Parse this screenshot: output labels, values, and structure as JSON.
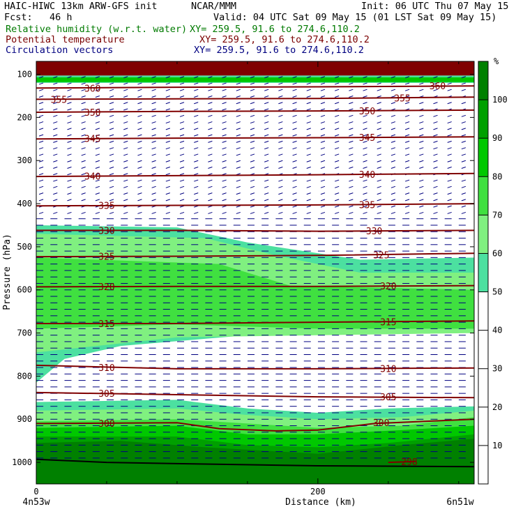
{
  "header": {
    "left_line1": "HAIC-HIWC 13km ARW-GFS init",
    "left_line1b": "NCAR/MMM",
    "left_line2": "Fcst:   46 h",
    "init": "Init: 06 UTC Thu 07 May 15",
    "valid": "Valid: 04 UTC Sat 09 May 15 (01 LST Sat 09 May 15)",
    "fields": [
      {
        "name": "Relative humidity (w.r.t. water)",
        "xy": "XY= 259.5, 91.6 to 274.6,110.2",
        "color": "#007a00"
      },
      {
        "name": "Potential temperature",
        "xy": "XY= 259.5, 91.6 to 274.6,110.2",
        "color": "#7a0000"
      },
      {
        "name": "Circulation vectors",
        "xy": "XY= 259.5, 91.6 to 274.6,110.2",
        "color": "#000080"
      }
    ]
  },
  "chart_data": {
    "type": "heatmap",
    "xlabel": "Distance (km)",
    "ylabel": "Pressure (hPa)",
    "xlim": [
      0,
      311
    ],
    "ylim": [
      1050,
      70
    ],
    "x_ticks": [
      0,
      200
    ],
    "x_minor_ticks": [
      50,
      100,
      150,
      250,
      300
    ],
    "y_ticks": [
      100,
      200,
      300,
      400,
      500,
      600,
      700,
      800,
      900,
      1000
    ],
    "x_endpoints": {
      "left": "4n53w",
      "right": "6n51w"
    },
    "colorbar": {
      "unit": "%",
      "levels": [
        0,
        10,
        20,
        30,
        40,
        50,
        60,
        70,
        80,
        90,
        100,
        110
      ],
      "tick_labels": [
        "10",
        "20",
        "30",
        "40",
        "50",
        "60",
        "70",
        "80",
        "90",
        "100"
      ],
      "colors": [
        "#ffffff",
        "#ffffff",
        "#ffffff",
        "#ffffff",
        "#ffffff",
        "#4ce0a0",
        "#80f080",
        "#40e040",
        "#00c800",
        "#00a000",
        "#008000",
        "#ff8080"
      ]
    },
    "rh_regions": [
      {
        "level": 100,
        "color": "#800000",
        "top": [
          {
            "x": 0,
            "p": 70
          },
          {
            "x": 311,
            "p": 70
          }
        ],
        "bottom": [
          {
            "x": 0,
            "p": 103
          },
          {
            "x": 311,
            "p": 103
          }
        ]
      },
      {
        "level": 50,
        "color": "#4ce0a0",
        "top": [
          {
            "x": 0,
            "p": 103
          },
          {
            "x": 311,
            "p": 103
          }
        ],
        "bottom": [
          {
            "x": 0,
            "p": 120
          },
          {
            "x": 311,
            "p": 120
          }
        ]
      },
      {
        "level": 80,
        "color": "#00c800",
        "top": [
          {
            "x": 0,
            "p": 107
          },
          {
            "x": 311,
            "p": 107
          }
        ],
        "bottom": [
          {
            "x": 0,
            "p": 118
          },
          {
            "x": 311,
            "p": 118
          }
        ]
      },
      {
        "level": 50,
        "color": "#4ce0a0",
        "top": [
          {
            "x": 0,
            "p": 450
          },
          {
            "x": 100,
            "p": 455
          },
          {
            "x": 150,
            "p": 490
          },
          {
            "x": 230,
            "p": 530
          },
          {
            "x": 311,
            "p": 525
          }
        ],
        "bottom": [
          {
            "x": 0,
            "p": 815
          },
          {
            "x": 20,
            "p": 760
          },
          {
            "x": 60,
            "p": 730
          },
          {
            "x": 150,
            "p": 705
          },
          {
            "x": 250,
            "p": 690
          },
          {
            "x": 311,
            "p": 650
          }
        ]
      },
      {
        "level": 60,
        "color": "#80f080",
        "top": [
          {
            "x": 0,
            "p": 470
          },
          {
            "x": 120,
            "p": 480
          },
          {
            "x": 170,
            "p": 520
          },
          {
            "x": 230,
            "p": 560
          },
          {
            "x": 311,
            "p": 560
          }
        ],
        "bottom": [
          {
            "x": 0,
            "p": 745
          },
          {
            "x": 100,
            "p": 710
          },
          {
            "x": 200,
            "p": 705
          },
          {
            "x": 311,
            "p": 700
          }
        ]
      },
      {
        "level": 70,
        "color": "#40e040",
        "top": [
          {
            "x": 0,
            "p": 525
          },
          {
            "x": 130,
            "p": 540
          },
          {
            "x": 180,
            "p": 590
          },
          {
            "x": 311,
            "p": 600
          }
        ],
        "bottom": [
          {
            "x": 0,
            "p": 690
          },
          {
            "x": 100,
            "p": 680
          },
          {
            "x": 200,
            "p": 690
          },
          {
            "x": 311,
            "p": 690
          }
        ]
      },
      {
        "level": 50,
        "color": "#4ce0a0",
        "top": [
          {
            "x": 0,
            "p": 860
          },
          {
            "x": 100,
            "p": 855
          },
          {
            "x": 150,
            "p": 875
          },
          {
            "x": 200,
            "p": 885
          },
          {
            "x": 250,
            "p": 875
          },
          {
            "x": 311,
            "p": 870
          }
        ],
        "bottom": [
          {
            "x": 0,
            "p": 1050
          },
          {
            "x": 311,
            "p": 1050
          }
        ]
      },
      {
        "level": 60,
        "color": "#80f080",
        "top": [
          {
            "x": 0,
            "p": 880
          },
          {
            "x": 100,
            "p": 875
          },
          {
            "x": 150,
            "p": 890
          },
          {
            "x": 200,
            "p": 900
          },
          {
            "x": 260,
            "p": 895
          },
          {
            "x": 311,
            "p": 880
          }
        ],
        "bottom": [
          {
            "x": 0,
            "p": 1050
          },
          {
            "x": 311,
            "p": 1050
          }
        ]
      },
      {
        "level": 70,
        "color": "#40e040",
        "top": [
          {
            "x": 0,
            "p": 905
          },
          {
            "x": 100,
            "p": 900
          },
          {
            "x": 150,
            "p": 910
          },
          {
            "x": 200,
            "p": 920
          },
          {
            "x": 260,
            "p": 915
          },
          {
            "x": 311,
            "p": 895
          }
        ],
        "bottom": [
          {
            "x": 0,
            "p": 1050
          },
          {
            "x": 311,
            "p": 1050
          }
        ]
      },
      {
        "level": 80,
        "color": "#00c800",
        "top": [
          {
            "x": 0,
            "p": 920
          },
          {
            "x": 100,
            "p": 915
          },
          {
            "x": 150,
            "p": 935
          },
          {
            "x": 200,
            "p": 935
          },
          {
            "x": 260,
            "p": 925
          },
          {
            "x": 311,
            "p": 915
          }
        ],
        "bottom": [
          {
            "x": 0,
            "p": 1050
          },
          {
            "x": 311,
            "p": 1050
          }
        ]
      },
      {
        "level": 90,
        "color": "#00a000",
        "top": [
          {
            "x": 0,
            "p": 940
          },
          {
            "x": 100,
            "p": 940
          },
          {
            "x": 150,
            "p": 960
          },
          {
            "x": 200,
            "p": 965
          },
          {
            "x": 250,
            "p": 955
          },
          {
            "x": 311,
            "p": 935
          }
        ],
        "bottom": [
          {
            "x": 0,
            "p": 1050
          },
          {
            "x": 311,
            "p": 1050
          }
        ]
      },
      {
        "level": 100,
        "color": "#008000",
        "top": [
          {
            "x": 0,
            "p": 955
          },
          {
            "x": 60,
            "p": 950
          },
          {
            "x": 120,
            "p": 965
          },
          {
            "x": 200,
            "p": 980
          },
          {
            "x": 260,
            "p": 960
          },
          {
            "x": 311,
            "p": 945
          }
        ],
        "bottom": [
          {
            "x": 0,
            "p": 1050
          },
          {
            "x": 311,
            "p": 1050
          }
        ]
      }
    ],
    "theta_contours": [
      {
        "value": 360,
        "points": [
          {
            "x": 0,
            "p": 132
          },
          {
            "x": 100,
            "p": 130
          },
          {
            "x": 200,
            "p": 129
          },
          {
            "x": 311,
            "p": 127
          }
        ],
        "labels": [
          {
            "x": 40,
            "p": 132
          },
          {
            "x": 285,
            "p": 127
          }
        ]
      },
      {
        "value": 355,
        "points": [
          {
            "x": 0,
            "p": 158
          },
          {
            "x": 100,
            "p": 157
          },
          {
            "x": 200,
            "p": 156
          },
          {
            "x": 311,
            "p": 153
          }
        ],
        "labels": [
          {
            "x": 16,
            "p": 158
          },
          {
            "x": 260,
            "p": 155
          }
        ]
      },
      {
        "value": 350,
        "points": [
          {
            "x": 0,
            "p": 188
          },
          {
            "x": 100,
            "p": 186
          },
          {
            "x": 200,
            "p": 185
          },
          {
            "x": 311,
            "p": 183
          }
        ],
        "labels": [
          {
            "x": 40,
            "p": 188
          },
          {
            "x": 235,
            "p": 185
          }
        ]
      },
      {
        "value": 345,
        "points": [
          {
            "x": 0,
            "p": 250
          },
          {
            "x": 100,
            "p": 248
          },
          {
            "x": 200,
            "p": 247
          },
          {
            "x": 311,
            "p": 245
          }
        ],
        "labels": [
          {
            "x": 40,
            "p": 249
          },
          {
            "x": 235,
            "p": 246
          }
        ]
      },
      {
        "value": 340,
        "points": [
          {
            "x": 0,
            "p": 337
          },
          {
            "x": 100,
            "p": 335
          },
          {
            "x": 200,
            "p": 333
          },
          {
            "x": 311,
            "p": 330
          }
        ],
        "labels": [
          {
            "x": 40,
            "p": 336
          },
          {
            "x": 235,
            "p": 332
          }
        ]
      },
      {
        "value": 335,
        "points": [
          {
            "x": 0,
            "p": 405
          },
          {
            "x": 100,
            "p": 404
          },
          {
            "x": 200,
            "p": 403
          },
          {
            "x": 311,
            "p": 400
          }
        ],
        "labels": [
          {
            "x": 50,
            "p": 404
          },
          {
            "x": 235,
            "p": 402
          }
        ]
      },
      {
        "value": 330,
        "points": [
          {
            "x": 0,
            "p": 462
          },
          {
            "x": 100,
            "p": 462
          },
          {
            "x": 200,
            "p": 464
          },
          {
            "x": 311,
            "p": 462
          }
        ],
        "labels": [
          {
            "x": 50,
            "p": 462
          },
          {
            "x": 240,
            "p": 463
          }
        ]
      },
      {
        "value": 325,
        "points": [
          {
            "x": 0,
            "p": 523
          },
          {
            "x": 100,
            "p": 522
          },
          {
            "x": 200,
            "p": 520
          },
          {
            "x": 311,
            "p": 515
          }
        ],
        "labels": [
          {
            "x": 50,
            "p": 522
          },
          {
            "x": 245,
            "p": 519
          }
        ]
      },
      {
        "value": 320,
        "points": [
          {
            "x": 0,
            "p": 593
          },
          {
            "x": 100,
            "p": 592
          },
          {
            "x": 200,
            "p": 592
          },
          {
            "x": 311,
            "p": 590
          }
        ],
        "labels": [
          {
            "x": 50,
            "p": 592
          },
          {
            "x": 250,
            "p": 591
          }
        ]
      },
      {
        "value": 315,
        "points": [
          {
            "x": 0,
            "p": 678
          },
          {
            "x": 100,
            "p": 678
          },
          {
            "x": 200,
            "p": 675
          },
          {
            "x": 311,
            "p": 672
          }
        ],
        "labels": [
          {
            "x": 50,
            "p": 678
          },
          {
            "x": 250,
            "p": 674
          }
        ]
      },
      {
        "value": 310,
        "points": [
          {
            "x": 0,
            "p": 775
          },
          {
            "x": 100,
            "p": 783
          },
          {
            "x": 200,
            "p": 783
          },
          {
            "x": 311,
            "p": 781
          }
        ],
        "labels": [
          {
            "x": 50,
            "p": 780
          },
          {
            "x": 250,
            "p": 782
          }
        ]
      },
      {
        "value": 305,
        "points": [
          {
            "x": 0,
            "p": 838
          },
          {
            "x": 100,
            "p": 843
          },
          {
            "x": 200,
            "p": 848
          },
          {
            "x": 311,
            "p": 850
          }
        ],
        "labels": [
          {
            "x": 50,
            "p": 840
          },
          {
            "x": 250,
            "p": 848
          }
        ]
      },
      {
        "value": 300,
        "points": [
          {
            "x": 0,
            "p": 910
          },
          {
            "x": 100,
            "p": 908
          },
          {
            "x": 130,
            "p": 922
          },
          {
            "x": 170,
            "p": 927
          },
          {
            "x": 200,
            "p": 925
          },
          {
            "x": 240,
            "p": 910
          },
          {
            "x": 311,
            "p": 900
          }
        ],
        "labels": [
          {
            "x": 50,
            "p": 909
          },
          {
            "x": 245,
            "p": 908
          }
        ]
      },
      {
        "value": 298,
        "points": [
          {
            "x": 250,
            "p": 1000
          },
          {
            "x": 270,
            "p": 998
          }
        ],
        "labels": [
          {
            "x": 265,
            "p": 998
          }
        ]
      }
    ],
    "terrain": [
      {
        "x": 0,
        "p": 993
      },
      {
        "x": 50,
        "p": 1000
      },
      {
        "x": 100,
        "p": 1003
      },
      {
        "x": 200,
        "p": 1008
      },
      {
        "x": 311,
        "p": 1010
      }
    ],
    "vectors": {
      "regions": [
        {
          "p_range": [
            100,
            430
          ],
          "u": -6,
          "w": -2
        },
        {
          "p_range": [
            430,
            1000
          ],
          "u": -10,
          "w": 0
        }
      ]
    }
  }
}
